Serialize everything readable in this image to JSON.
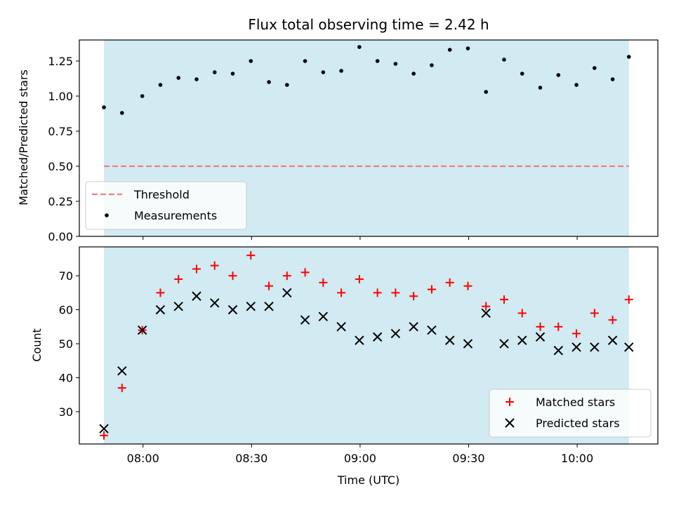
{
  "chart_data": {
    "title": "Flux total observing time = 2.42 h",
    "xlabel": "Time (UTC)",
    "x_tick_labels": [
      "08:00",
      "08:30",
      "09:00",
      "09:30",
      "10:00"
    ],
    "x_tick_minutes": [
      480,
      510,
      540,
      570,
      600
    ],
    "x_range_minutes": [
      462.4,
      622.3
    ],
    "shaded_span_minutes": [
      469.2,
      614.3
    ],
    "time_minutes": [
      469.2,
      474.2,
      479.8,
      484.8,
      489.8,
      494.8,
      499.8,
      504.8,
      509.8,
      514.8,
      519.8,
      524.8,
      529.8,
      534.8,
      539.8,
      544.8,
      549.8,
      554.8,
      559.8,
      564.8,
      569.8,
      574.8,
      579.8,
      584.8,
      589.8,
      594.8,
      599.8,
      604.8,
      609.8,
      614.3
    ],
    "panels": [
      {
        "type": "scatter",
        "ylabel": "Matched/Predicted stars",
        "ylim": [
          0,
          1.4
        ],
        "y_ticks": [
          0.0,
          0.25,
          0.5,
          0.75,
          1.0,
          1.25
        ],
        "y_tick_labels": [
          "0.00",
          "0.25",
          "0.50",
          "0.75",
          "1.00",
          "1.25"
        ],
        "threshold": 0.5,
        "legend": {
          "placement": "lower-left",
          "entries": [
            "Threshold",
            "Measurements"
          ]
        },
        "series": [
          {
            "name": "Measurements",
            "marker": "dot",
            "color": "#000000",
            "values": [
              0.92,
              0.88,
              1.0,
              1.08,
              1.13,
              1.12,
              1.17,
              1.16,
              1.25,
              1.1,
              1.08,
              1.25,
              1.17,
              1.18,
              1.35,
              1.25,
              1.23,
              1.16,
              1.22,
              1.33,
              1.34,
              1.03,
              1.26,
              1.16,
              1.06,
              1.15,
              1.08,
              1.2,
              1.12,
              1.28
            ]
          },
          {
            "name": "Threshold",
            "marker": "dashed-line",
            "color": "#f08080",
            "values": [
              0.5
            ]
          }
        ]
      },
      {
        "type": "scatter",
        "ylabel": "Count",
        "ylim": [
          20.5,
          78.5
        ],
        "y_ticks": [
          30,
          40,
          50,
          60,
          70
        ],
        "y_tick_labels": [
          "30",
          "40",
          "50",
          "60",
          "70"
        ],
        "legend": {
          "placement": "lower-right",
          "entries": [
            "Matched stars",
            "Predicted stars"
          ]
        },
        "series": [
          {
            "name": "Matched stars",
            "marker": "plus",
            "color": "#ff0000",
            "values": [
              23,
              37,
              54,
              65,
              69,
              72,
              73,
              70,
              76,
              67,
              70,
              71,
              68,
              65,
              69,
              65,
              65,
              64,
              66,
              68,
              67,
              61,
              63,
              59,
              55,
              55,
              53,
              59,
              57,
              63
            ]
          },
          {
            "name": "Predicted stars",
            "marker": "x",
            "color": "#000000",
            "values": [
              25,
              42,
              54,
              60,
              61,
              64,
              62,
              60,
              61,
              61,
              65,
              57,
              58,
              55,
              51,
              52,
              53,
              55,
              54,
              51,
              50,
              59,
              50,
              51,
              52,
              48,
              49,
              49,
              51,
              49
            ]
          }
        ]
      }
    ]
  },
  "colors": {
    "shade": "#add8e6",
    "threshold": "#f08080",
    "matched": "#ff0000",
    "predicted": "#000000"
  }
}
